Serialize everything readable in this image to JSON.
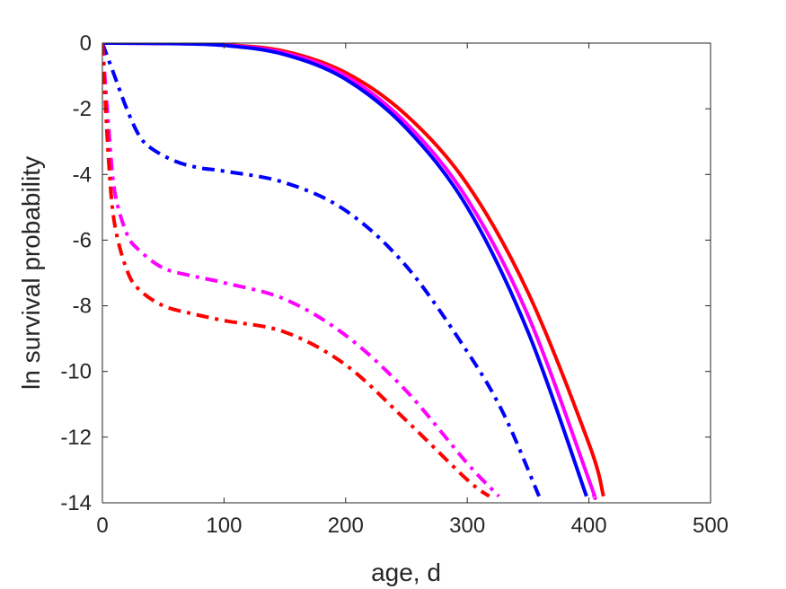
{
  "chart_data": {
    "type": "line",
    "title": "",
    "xlabel": "age, d",
    "ylabel": "ln survival probability",
    "xlim": [
      0,
      500
    ],
    "ylim": [
      -14,
      0
    ],
    "xticks": [
      0,
      100,
      200,
      300,
      400,
      500
    ],
    "yticks": [
      0,
      -2,
      -4,
      -6,
      -8,
      -10,
      -12,
      -14
    ],
    "grid": false,
    "legend": "none",
    "series": [
      {
        "color": "#ff0000",
        "linestyle": "solid",
        "x": [
          0,
          50,
          100,
          150,
          200,
          250,
          300,
          350,
          400,
          412
        ],
        "y": [
          0,
          -0.01,
          -0.05,
          -0.25,
          -0.9,
          -2.2,
          -4.3,
          -7.6,
          -12.2,
          -13.8
        ]
      },
      {
        "color": "#ff00ff",
        "linestyle": "solid",
        "x": [
          0,
          50,
          100,
          150,
          200,
          250,
          300,
          350,
          400,
          404
        ],
        "y": [
          0,
          -0.01,
          -0.06,
          -0.3,
          -1.0,
          -2.45,
          -4.75,
          -8.3,
          -13.3,
          -13.8
        ]
      },
      {
        "color": "#0000ff",
        "linestyle": "solid",
        "x": [
          0,
          50,
          100,
          150,
          200,
          250,
          300,
          350,
          398
        ],
        "y": [
          0,
          -0.01,
          -0.07,
          -0.35,
          -1.1,
          -2.6,
          -5.0,
          -8.8,
          -13.8
        ]
      },
      {
        "color": "#0000ff",
        "linestyle": "dashdot",
        "x": [
          0,
          10,
          20,
          30,
          40,
          60,
          80,
          100,
          150,
          200,
          250,
          300,
          330,
          359
        ],
        "y": [
          0,
          -1.0,
          -2.0,
          -2.8,
          -3.2,
          -3.6,
          -3.8,
          -3.9,
          -4.25,
          -5.1,
          -6.8,
          -9.4,
          -11.3,
          -13.8
        ]
      },
      {
        "color": "#ff00ff",
        "linestyle": "dashdot",
        "x": [
          0,
          5,
          10,
          20,
          30,
          50,
          75,
          100,
          150,
          200,
          250,
          300,
          326
        ],
        "y": [
          0,
          -2.5,
          -4.5,
          -5.8,
          -6.3,
          -6.85,
          -7.1,
          -7.3,
          -7.8,
          -8.9,
          -10.6,
          -12.8,
          -13.8
        ]
      },
      {
        "color": "#ff0000",
        "linestyle": "dashdot",
        "x": [
          0,
          5,
          10,
          20,
          30,
          50,
          75,
          100,
          150,
          200,
          250,
          300,
          318
        ],
        "y": [
          0,
          -3.5,
          -5.5,
          -6.9,
          -7.5,
          -8.0,
          -8.25,
          -8.45,
          -8.8,
          -9.8,
          -11.5,
          -13.3,
          -13.8
        ]
      }
    ]
  }
}
